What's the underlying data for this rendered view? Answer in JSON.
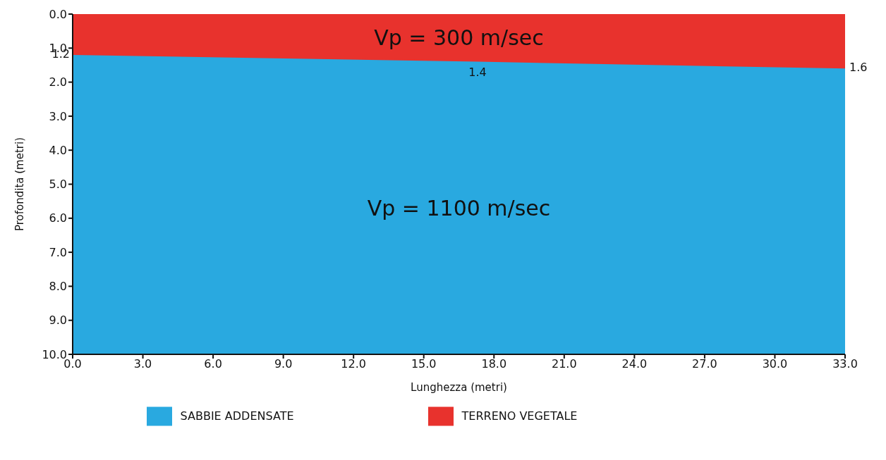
{
  "chart_data": {
    "type": "area",
    "stacked": true,
    "xlabel": "Lunghezza (metri)",
    "ylabel": "Profondita (metri)",
    "x": [
      0,
      17.3,
      33
    ],
    "series": [
      {
        "name": "TERRENO VEGETALE",
        "color": "#e8322d",
        "values": [
          1.2,
          1.4,
          1.6
        ],
        "value_labels": [
          "1.2",
          "1.4",
          "1.6"
        ]
      },
      {
        "name": "SABBIE ADDENSATE",
        "color": "#29a9e0",
        "values": [
          8.8,
          8.6,
          8.4
        ]
      }
    ],
    "xlim": [
      0,
      33
    ],
    "xticks": [
      {
        "value": 0,
        "label": "0.0"
      },
      {
        "value": 3,
        "label": "3.0"
      },
      {
        "value": 6,
        "label": "6.0"
      },
      {
        "value": 9,
        "label": "9.0"
      },
      {
        "value": 12,
        "label": "12.0"
      },
      {
        "value": 15,
        "label": "15.0"
      },
      {
        "value": 18,
        "label": "18.0"
      },
      {
        "value": 21,
        "label": "21.0"
      },
      {
        "value": 24,
        "label": "24.0"
      },
      {
        "value": 27,
        "label": "27.0"
      },
      {
        "value": 30,
        "label": "30.0"
      },
      {
        "value": 33,
        "label": "33.0"
      }
    ],
    "ylim": [
      10,
      0
    ],
    "yticks": [
      {
        "value": 0,
        "label": "0.0"
      },
      {
        "value": 1,
        "label": "1.0"
      },
      {
        "value": 2,
        "label": "2.0"
      },
      {
        "value": 3,
        "label": "3.0"
      },
      {
        "value": 4,
        "label": "4.0"
      },
      {
        "value": 5,
        "label": "5.0"
      },
      {
        "value": 6,
        "label": "6.0"
      },
      {
        "value": 7,
        "label": "7.0"
      },
      {
        "value": 8,
        "label": "8.0"
      },
      {
        "value": 9,
        "label": "9.0"
      },
      {
        "value": 10,
        "label": "10.0"
      }
    ],
    "annotations": [
      "Vp = 300 m/sec",
      "Vp = 1100 m/sec"
    ],
    "grid": false,
    "legend": "bottom",
    "line_style": "solid",
    "marker": "none"
  }
}
